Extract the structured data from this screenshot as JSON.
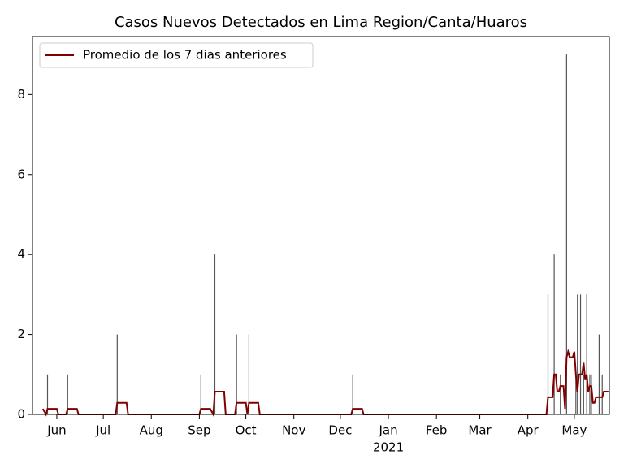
{
  "chart_data": {
    "type": "line",
    "title": "Casos Nuevos Detectados en Lima Region/Canta/Huaros",
    "xlim": [
      136.3,
      508.6
    ],
    "ylim": [
      0,
      9.45
    ],
    "xticks": [
      {
        "value": 152,
        "label": "Jun"
      },
      {
        "value": 182,
        "label": "Jul"
      },
      {
        "value": 213,
        "label": "Aug"
      },
      {
        "value": 244,
        "label": "Sep"
      },
      {
        "value": 274,
        "label": "Oct"
      },
      {
        "value": 305,
        "label": "Nov"
      },
      {
        "value": 335,
        "label": "Dec"
      },
      {
        "value": 366,
        "label": "Jan"
      },
      {
        "value": 397,
        "label": "Feb"
      },
      {
        "value": 425,
        "label": "Mar"
      },
      {
        "value": 456,
        "label": "Apr"
      },
      {
        "value": 486,
        "label": "May"
      }
    ],
    "year_label": "2021",
    "yticks": [
      0,
      2,
      4,
      6,
      8
    ],
    "legend_position": "upper left",
    "bars": {
      "color": "#555555",
      "x": [
        146,
        159,
        191,
        245,
        254,
        268,
        276,
        343,
        469,
        473,
        477,
        481,
        487,
        488,
        490,
        492,
        494,
        496,
        497,
        502,
        504
      ],
      "values": [
        1,
        1,
        2,
        1,
        4,
        2,
        2,
        1,
        3,
        4,
        1,
        9,
        1,
        3,
        3,
        1,
        3,
        1,
        1,
        2,
        1
      ]
    },
    "series": [
      {
        "name": "Promedio de los 7 dias anteriores",
        "color": "#800000",
        "x": [
          143,
          145,
          146,
          152,
          153,
          158,
          159,
          165,
          166,
          190,
          191,
          197,
          198,
          244,
          245,
          251,
          253,
          254,
          260,
          261,
          267,
          268,
          274,
          275,
          276,
          282,
          283,
          342,
          343,
          349,
          350,
          468,
          469,
          472,
          473,
          474,
          475,
          476,
          477,
          479,
          480,
          481,
          482,
          483,
          485,
          486,
          487,
          488,
          489,
          491,
          492,
          493,
          494,
          495,
          496,
          497,
          498,
          499,
          500,
          504,
          505,
          508
        ],
        "values": [
          0.14,
          0,
          0.14,
          0.14,
          0,
          0,
          0.14,
          0.14,
          0,
          0,
          0.29,
          0.29,
          0,
          0,
          0.14,
          0.14,
          0,
          0.57,
          0.57,
          0,
          0,
          0.29,
          0.29,
          0,
          0.29,
          0.29,
          0,
          0,
          0.14,
          0.14,
          0,
          0,
          0.43,
          0.43,
          1.0,
          1.0,
          0.57,
          0.57,
          0.71,
          0.71,
          0.14,
          1.43,
          1.57,
          1.43,
          1.43,
          1.57,
          1.0,
          0.57,
          1.0,
          1.0,
          1.29,
          0.86,
          1.0,
          0.57,
          0.71,
          0.71,
          0.29,
          0.29,
          0.43,
          0.43,
          0.57,
          0.57
        ]
      }
    ]
  }
}
